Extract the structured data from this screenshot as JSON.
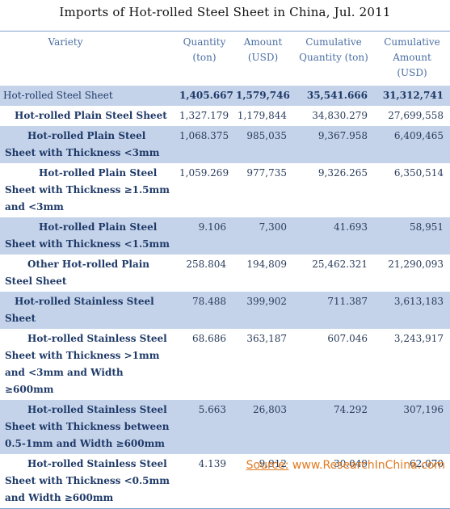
{
  "title": "Imports of Hot-rolled Steel Sheet in China, Jul. 2011",
  "headers": {
    "variety": "Variety",
    "quantity": "Quantity (ton)",
    "amount": "Amount (USD)",
    "cum_quantity": "Cumulative Quantity (ton)",
    "cum_amount": "Cumulative Amount (USD)"
  },
  "rows": [
    {
      "name": "Hot-rolled Steel Sheet",
      "quantity": "1,405.667",
      "amount": "1,579,746",
      "cum_quantity": "35,541.666",
      "cum_amount": "31,312,741"
    },
    {
      "name": "Hot-rolled Plain Steel Sheet",
      "quantity": "1,327.179",
      "amount": "1,179,844",
      "cum_quantity": "34,830.279",
      "cum_amount": "27,699,558"
    },
    {
      "name": "Hot-rolled Plain Steel Sheet with Thickness <3mm",
      "quantity": "1,068.375",
      "amount": "985,035",
      "cum_quantity": "9,367.958",
      "cum_amount": "6,409,465"
    },
    {
      "name": "Hot-rolled Plain Steel Sheet with Thickness ≥1.5mm and <3mm",
      "quantity": "1,059.269",
      "amount": "977,735",
      "cum_quantity": "9,326.265",
      "cum_amount": "6,350,514"
    },
    {
      "name": "Hot-rolled Plain Steel Sheet with Thickness <1.5mm",
      "quantity": "9.106",
      "amount": "7,300",
      "cum_quantity": "41.693",
      "cum_amount": "58,951"
    },
    {
      "name": "Other Hot-rolled Plain Steel Sheet",
      "quantity": "258.804",
      "amount": "194,809",
      "cum_quantity": "25,462.321",
      "cum_amount": "21,290,093"
    },
    {
      "name": "Hot-rolled Stainless Steel Sheet",
      "quantity": "78.488",
      "amount": "399,902",
      "cum_quantity": "711.387",
      "cum_amount": "3,613,183"
    },
    {
      "name": "Hot-rolled Stainless Steel Sheet with Thickness >1mm and <3mm and Width ≥600mm",
      "quantity": "68.686",
      "amount": "363,187",
      "cum_quantity": "607.046",
      "cum_amount": "3,243,917"
    },
    {
      "name": "Hot-rolled Stainless Steel Sheet with Thickness between 0.5-1mm and Width ≥600mm",
      "quantity": "5.663",
      "amount": "26,803",
      "cum_quantity": "74.292",
      "cum_amount": "307,196"
    },
    {
      "name": "Hot-rolled Stainless Steel Sheet with Thickness <0.5mm and Width ≥600mm",
      "quantity": "4.139",
      "amount": "9,912",
      "cum_quantity": "30.049",
      "cum_amount": "62,070"
    }
  ],
  "source": {
    "label": "Source:",
    "text": "www.ResearchInChina.com"
  },
  "colors": {
    "row_shade": "#c4d3ea",
    "text": "#1f3a68",
    "source": "#e07a20"
  }
}
